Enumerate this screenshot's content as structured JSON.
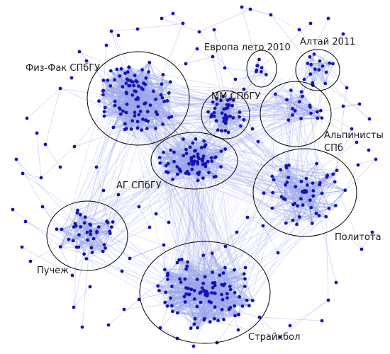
{
  "diagram": {
    "colors": {
      "background": "#ffffff",
      "node": "#1414b4",
      "edge": "#9aa6ea",
      "cluster_outline": "#000000",
      "label_text": "#1a1a1a"
    },
    "clusters": [
      {
        "id": "fizfak",
        "label": "Физ-Фак СПбГУ"
      },
      {
        "id": "evropa",
        "label": "Европа лето 2010"
      },
      {
        "id": "altai",
        "label": "Алтай 2011"
      },
      {
        "id": "mm",
        "label": "ММ СПбГУ"
      },
      {
        "id": "alp",
        "label": "Альпинисты СПб",
        "label_lines": [
          "Альпинисты",
          "СПб"
        ]
      },
      {
        "id": "ag",
        "label": "АГ СПбГУ"
      },
      {
        "id": "politota",
        "label": "Политота"
      },
      {
        "id": "puchezh",
        "label": "Пучеж"
      },
      {
        "id": "straikbol",
        "label": "Страйкбол"
      }
    ]
  }
}
